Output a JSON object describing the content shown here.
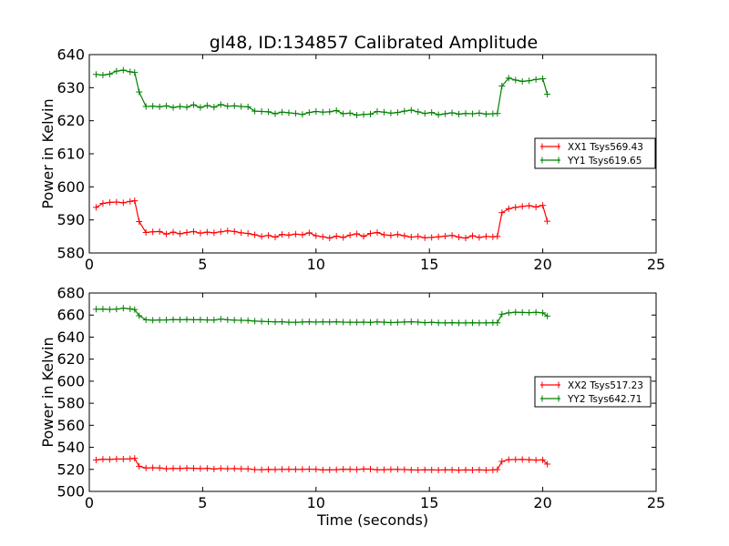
{
  "chart_data": [
    {
      "type": "line",
      "title": "gl48, ID:134857 Calibrated Amplitude",
      "xlabel": "",
      "ylabel": "Power in Kelvin",
      "xlim": [
        0,
        25
      ],
      "ylim": [
        580,
        640
      ],
      "xticks": [
        "0",
        "5",
        "10",
        "15",
        "20",
        "25"
      ],
      "yticks": [
        "580",
        "590",
        "600",
        "610",
        "620",
        "630",
        "640"
      ],
      "legend_position": "center-right",
      "series": [
        {
          "name": "XX1 Tsys569.43",
          "color": "#ff0000",
          "x": [
            0.3,
            0.6,
            0.9,
            1.2,
            1.5,
            1.8,
            2.0,
            2.2,
            2.5,
            2.8,
            3.1,
            3.4,
            3.7,
            4.0,
            4.3,
            4.6,
            4.9,
            5.2,
            5.5,
            5.8,
            6.1,
            6.4,
            6.7,
            7.0,
            7.3,
            7.6,
            7.9,
            8.2,
            8.5,
            8.8,
            9.1,
            9.4,
            9.7,
            10.0,
            10.3,
            10.6,
            10.9,
            11.2,
            11.5,
            11.8,
            12.1,
            12.4,
            12.7,
            13.0,
            13.3,
            13.6,
            13.9,
            14.2,
            14.5,
            14.8,
            15.1,
            15.4,
            15.7,
            16.0,
            16.3,
            16.6,
            16.9,
            17.2,
            17.5,
            17.8,
            18.0,
            18.2,
            18.5,
            18.8,
            19.1,
            19.4,
            19.7,
            20.0,
            20.2
          ],
          "values": [
            593.8,
            595.0,
            595.3,
            595.4,
            595.2,
            595.6,
            595.8,
            589.5,
            586.2,
            586.4,
            586.5,
            585.7,
            586.3,
            585.8,
            586.2,
            586.5,
            586.0,
            586.3,
            586.1,
            586.4,
            586.7,
            586.5,
            586.1,
            585.9,
            585.5,
            585.0,
            585.3,
            584.8,
            585.6,
            585.4,
            585.7,
            585.5,
            586.1,
            585.2,
            584.9,
            584.5,
            585.1,
            584.7,
            585.4,
            585.8,
            585.0,
            585.9,
            586.2,
            585.5,
            585.3,
            585.6,
            585.2,
            584.8,
            585.0,
            584.6,
            584.7,
            584.9,
            585.1,
            585.3,
            584.8,
            584.5,
            585.2,
            584.7,
            585.0,
            584.9,
            585.0,
            592.2,
            593.4,
            593.8,
            594.1,
            594.3,
            593.9,
            594.4,
            589.6
          ]
        },
        {
          "name": "YY1 Tsys619.65",
          "color": "#008000",
          "x": [
            0.3,
            0.6,
            0.9,
            1.2,
            1.5,
            1.8,
            2.0,
            2.2,
            2.5,
            2.8,
            3.1,
            3.4,
            3.7,
            4.0,
            4.3,
            4.6,
            4.9,
            5.2,
            5.5,
            5.8,
            6.1,
            6.4,
            6.7,
            7.0,
            7.3,
            7.6,
            7.9,
            8.2,
            8.5,
            8.8,
            9.1,
            9.4,
            9.7,
            10.0,
            10.3,
            10.6,
            10.9,
            11.2,
            11.5,
            11.8,
            12.1,
            12.4,
            12.7,
            13.0,
            13.3,
            13.6,
            13.9,
            14.2,
            14.5,
            14.8,
            15.1,
            15.4,
            15.7,
            16.0,
            16.3,
            16.6,
            16.9,
            17.2,
            17.5,
            17.8,
            18.0,
            18.2,
            18.5,
            18.8,
            19.1,
            19.4,
            19.7,
            20.0,
            20.2
          ],
          "values": [
            634.0,
            633.8,
            634.1,
            635.0,
            635.3,
            634.8,
            634.6,
            628.7,
            624.3,
            624.4,
            624.2,
            624.5,
            624.0,
            624.3,
            624.1,
            624.8,
            624.0,
            624.6,
            624.1,
            624.9,
            624.4,
            624.5,
            624.3,
            624.2,
            622.9,
            622.8,
            622.7,
            622.1,
            622.6,
            622.4,
            622.2,
            621.9,
            622.5,
            622.8,
            622.6,
            622.7,
            623.1,
            622.1,
            622.3,
            621.7,
            621.9,
            622.0,
            622.8,
            622.6,
            622.3,
            622.5,
            622.9,
            623.2,
            622.7,
            622.2,
            622.5,
            621.8,
            622.1,
            622.4,
            622.0,
            622.2,
            622.1,
            622.3,
            622.0,
            622.1,
            622.2,
            630.5,
            632.9,
            632.3,
            631.9,
            632.1,
            632.5,
            632.7,
            628.0
          ]
        }
      ]
    },
    {
      "type": "line",
      "title": "",
      "xlabel": "Time (seconds)",
      "ylabel": "Power in Kelvin",
      "xlim": [
        0,
        25
      ],
      "ylim": [
        500,
        680
      ],
      "xticks": [
        "0",
        "5",
        "10",
        "15",
        "20",
        "25"
      ],
      "yticks": [
        "500",
        "520",
        "540",
        "560",
        "580",
        "600",
        "620",
        "640",
        "660",
        "680"
      ],
      "legend_position": "center-right",
      "series": [
        {
          "name": "XX2 Tsys517.23",
          "color": "#ff0000",
          "x": [
            0.3,
            0.6,
            0.9,
            1.2,
            1.5,
            1.8,
            2.0,
            2.2,
            2.5,
            2.8,
            3.1,
            3.4,
            3.7,
            4.0,
            4.3,
            4.6,
            4.9,
            5.2,
            5.5,
            5.8,
            6.1,
            6.4,
            6.7,
            7.0,
            7.3,
            7.6,
            7.9,
            8.2,
            8.5,
            8.8,
            9.1,
            9.4,
            9.7,
            10.0,
            10.3,
            10.6,
            10.9,
            11.2,
            11.5,
            11.8,
            12.1,
            12.4,
            12.7,
            13.0,
            13.3,
            13.6,
            13.9,
            14.2,
            14.5,
            14.8,
            15.1,
            15.4,
            15.7,
            16.0,
            16.3,
            16.6,
            16.9,
            17.2,
            17.5,
            17.8,
            18.0,
            18.2,
            18.5,
            18.8,
            19.1,
            19.4,
            19.7,
            20.0,
            20.2
          ],
          "values": [
            528.5,
            529.2,
            529.0,
            529.4,
            529.3,
            529.6,
            530.0,
            522.8,
            521.2,
            521.5,
            521.3,
            520.6,
            520.9,
            520.8,
            521.1,
            521.0,
            520.7,
            520.9,
            520.3,
            520.8,
            520.6,
            520.7,
            520.5,
            520.4,
            519.8,
            519.7,
            519.9,
            519.8,
            520.0,
            520.1,
            519.9,
            520.0,
            520.2,
            520.0,
            519.5,
            519.6,
            519.7,
            520.1,
            520.0,
            519.8,
            520.3,
            520.2,
            519.6,
            519.7,
            519.9,
            520.0,
            519.8,
            519.5,
            519.4,
            519.6,
            519.5,
            519.4,
            519.6,
            519.5,
            519.3,
            519.5,
            519.4,
            519.6,
            519.3,
            519.5,
            519.8,
            527.2,
            528.8,
            528.9,
            529.0,
            528.7,
            528.4,
            528.6,
            524.8
          ]
        },
        {
          "name": "YY2 Tsys642.71",
          "color": "#008000",
          "x": [
            0.3,
            0.6,
            0.9,
            1.2,
            1.5,
            1.8,
            2.0,
            2.2,
            2.5,
            2.8,
            3.1,
            3.4,
            3.7,
            4.0,
            4.3,
            4.6,
            4.9,
            5.2,
            5.5,
            5.8,
            6.1,
            6.4,
            6.7,
            7.0,
            7.3,
            7.6,
            7.9,
            8.2,
            8.5,
            8.8,
            9.1,
            9.4,
            9.7,
            10.0,
            10.3,
            10.6,
            10.9,
            11.2,
            11.5,
            11.8,
            12.1,
            12.4,
            12.7,
            13.0,
            13.3,
            13.6,
            13.9,
            14.2,
            14.5,
            14.8,
            15.1,
            15.4,
            15.7,
            16.0,
            16.3,
            16.6,
            16.9,
            17.2,
            17.5,
            17.8,
            18.0,
            18.2,
            18.5,
            18.8,
            19.1,
            19.4,
            19.7,
            20.0,
            20.2
          ],
          "values": [
            665.3,
            665.5,
            665.1,
            665.4,
            666.2,
            665.6,
            665.0,
            659.4,
            655.7,
            655.3,
            655.5,
            655.6,
            655.9,
            655.8,
            656.0,
            655.7,
            655.8,
            655.6,
            655.5,
            656.3,
            655.7,
            655.4,
            655.2,
            655.1,
            654.5,
            654.3,
            654.0,
            653.8,
            653.9,
            653.5,
            653.4,
            653.7,
            653.9,
            653.6,
            653.8,
            653.7,
            653.9,
            653.6,
            653.4,
            653.5,
            653.6,
            653.3,
            653.8,
            653.5,
            653.2,
            653.4,
            653.7,
            653.9,
            653.6,
            653.1,
            653.4,
            653.0,
            652.9,
            653.1,
            652.8,
            652.9,
            653.0,
            652.8,
            652.9,
            653.1,
            653.0,
            660.8,
            662.0,
            662.6,
            662.4,
            662.2,
            662.5,
            662.0,
            659.1
          ]
        }
      ]
    }
  ]
}
